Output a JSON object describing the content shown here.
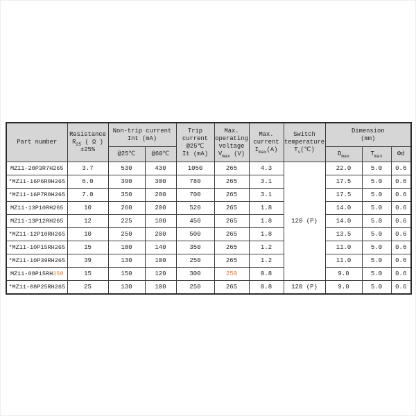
{
  "colors": {
    "header_bg": "#d6d6d6",
    "border": "#3c3c3c",
    "text": "#1f1f1f",
    "highlight_orange": "#e07a2e"
  },
  "table": {
    "headers": {
      "part_number": "Part number",
      "resistance_line1": "Resistance",
      "resistance_sym": "R",
      "resistance_sub": "25",
      "resistance_unit": " ( Ω )",
      "resistance_tol": "±25%",
      "nontrip_line1": "Non-trip current",
      "nontrip_line2": "Int (mA)",
      "at25": "@25℃",
      "at60": "@60℃",
      "trip_line1": "Trip",
      "trip_line2": "current",
      "trip_line3": "@25℃",
      "trip_line4": "It (mA)",
      "volt_line1": "Max.",
      "volt_line2": "operating",
      "volt_line3": "voltage",
      "volt_sym": "V",
      "volt_sub": "max",
      "volt_unit": " (V)",
      "curr_line1": "Max.",
      "curr_line2": "current",
      "curr_sym": "I",
      "curr_sub": "max",
      "curr_unit": "(A)",
      "switch_line1": "Switch",
      "switch_line2": "temperature",
      "switch_sym": "T",
      "switch_sub": "s",
      "switch_unit": "(℃)",
      "dim_line1": "Dimension",
      "dim_line2": "(mm)",
      "dmax_sym": "D",
      "dmax_sub": "max",
      "tmax_sym": "T",
      "tmax_sub": "max",
      "phid": "Φd"
    },
    "switch_groups": [
      {
        "label": "120 (P)",
        "span": 9
      },
      {
        "label": "120 (P)",
        "span": 1
      }
    ],
    "rows": [
      {
        "part": "MZ11-20P3R7H265",
        "part_hl": "",
        "r25": "3.7",
        "nt25": "530",
        "nt60": "430",
        "trip": "1050",
        "vmax": "265",
        "vmax_hl": false,
        "imax": "4.3",
        "dmax": "22.0",
        "tmax": "5.0",
        "phid": "0.6"
      },
      {
        "part": "*MZ11-16P6R0H265",
        "part_hl": "",
        "r25": "6.0",
        "nt25": "390",
        "nt60": "300",
        "trip": "780",
        "vmax": "265",
        "vmax_hl": false,
        "imax": "3.1",
        "dmax": "17.5",
        "tmax": "5.0",
        "phid": "0.6"
      },
      {
        "part": "*MZ11-16P7R0H265",
        "part_hl": "",
        "r25": "7.0",
        "nt25": "350",
        "nt60": "280",
        "trip": "700",
        "vmax": "265",
        "vmax_hl": false,
        "imax": "3.1",
        "dmax": "17.5",
        "tmax": "5.0",
        "phid": "0.6"
      },
      {
        "part": "MZ11-13P10RH265",
        "part_hl": "",
        "r25": "10",
        "nt25": "260",
        "nt60": "200",
        "trip": "520",
        "vmax": "265",
        "vmax_hl": false,
        "imax": "1.8",
        "dmax": "14.0",
        "tmax": "5.0",
        "phid": "0.6"
      },
      {
        "part": "MZ11-13P12RH265",
        "part_hl": "",
        "r25": "12",
        "nt25": "225",
        "nt60": "180",
        "trip": "450",
        "vmax": "265",
        "vmax_hl": false,
        "imax": "1.8",
        "dmax": "14.0",
        "tmax": "5.0",
        "phid": "0.6"
      },
      {
        "part": "*MZ11-12P10RH265",
        "part_hl": "",
        "r25": "10",
        "nt25": "250",
        "nt60": "200",
        "trip": "500",
        "vmax": "265",
        "vmax_hl": false,
        "imax": "1.8",
        "dmax": "13.5",
        "tmax": "5.0",
        "phid": "0.6"
      },
      {
        "part": "*MZ11-10P15RH265",
        "part_hl": "",
        "r25": "15",
        "nt25": "180",
        "nt60": "140",
        "trip": "350",
        "vmax": "265",
        "vmax_hl": false,
        "imax": "1.2",
        "dmax": "11.0",
        "tmax": "5.0",
        "phid": "0.6"
      },
      {
        "part": "*MZ11-10P39RH265",
        "part_hl": "",
        "r25": "39",
        "nt25": "130",
        "nt60": "100",
        "trip": "250",
        "vmax": "265",
        "vmax_hl": false,
        "imax": "1.2",
        "dmax": "11.0",
        "tmax": "5.0",
        "phid": "0.6"
      },
      {
        "part": "MZ11-08P15RH",
        "part_hl": "250",
        "r25": "15",
        "nt25": "150",
        "nt60": "120",
        "trip": "300",
        "vmax": "250",
        "vmax_hl": true,
        "imax": "0.8",
        "dmax": "9.0",
        "tmax": "5.0",
        "phid": "0.6"
      },
      {
        "part": "*MZ11-08P25RH265",
        "part_hl": "",
        "r25": "25",
        "nt25": "130",
        "nt60": "100",
        "trip": "250",
        "vmax": "265",
        "vmax_hl": false,
        "imax": "0.8",
        "dmax": "9.0",
        "tmax": "5.0",
        "phid": "0.6"
      }
    ]
  }
}
